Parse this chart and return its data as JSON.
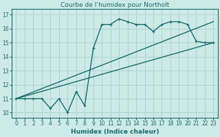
{
  "title": "Courbe de l’humidex pour Northolt",
  "xlabel": "Humidex (Indice chaleur)",
  "bg_color": "#cceae7",
  "grid_color": "#aad4d0",
  "line_color": "#1a6b6b",
  "xlim": [
    -0.5,
    23.5
  ],
  "ylim": [
    9.65,
    17.4
  ],
  "xticks": [
    0,
    1,
    2,
    3,
    4,
    5,
    6,
    7,
    8,
    9,
    10,
    11,
    12,
    13,
    14,
    15,
    16,
    17,
    18,
    19,
    20,
    21,
    22,
    23
  ],
  "yticks": [
    10,
    11,
    12,
    13,
    14,
    15,
    16,
    17
  ],
  "zigzag_x": [
    0,
    1,
    2,
    3,
    4,
    5,
    6,
    7,
    8,
    9,
    10,
    11,
    12,
    13,
    14,
    15,
    16,
    17,
    18,
    19,
    20,
    21,
    22,
    23
  ],
  "zigzag_y": [
    11.0,
    11.0,
    11.0,
    11.0,
    10.3,
    11.0,
    10.0,
    11.5,
    10.5,
    14.6,
    16.3,
    16.3,
    16.7,
    16.5,
    16.3,
    16.3,
    15.8,
    16.3,
    16.5,
    16.5,
    16.3,
    15.1,
    15.0,
    15.0
  ],
  "trend1_x": [
    0,
    23
  ],
  "trend1_y": [
    11.0,
    15.0
  ],
  "trend2_x": [
    0,
    23
  ],
  "trend2_y": [
    11.0,
    16.5
  ],
  "marker_size": 3.0,
  "linewidth": 1.0,
  "title_fontsize": 6.5,
  "tick_fontsize": 5.5,
  "xlabel_fontsize": 6.5
}
